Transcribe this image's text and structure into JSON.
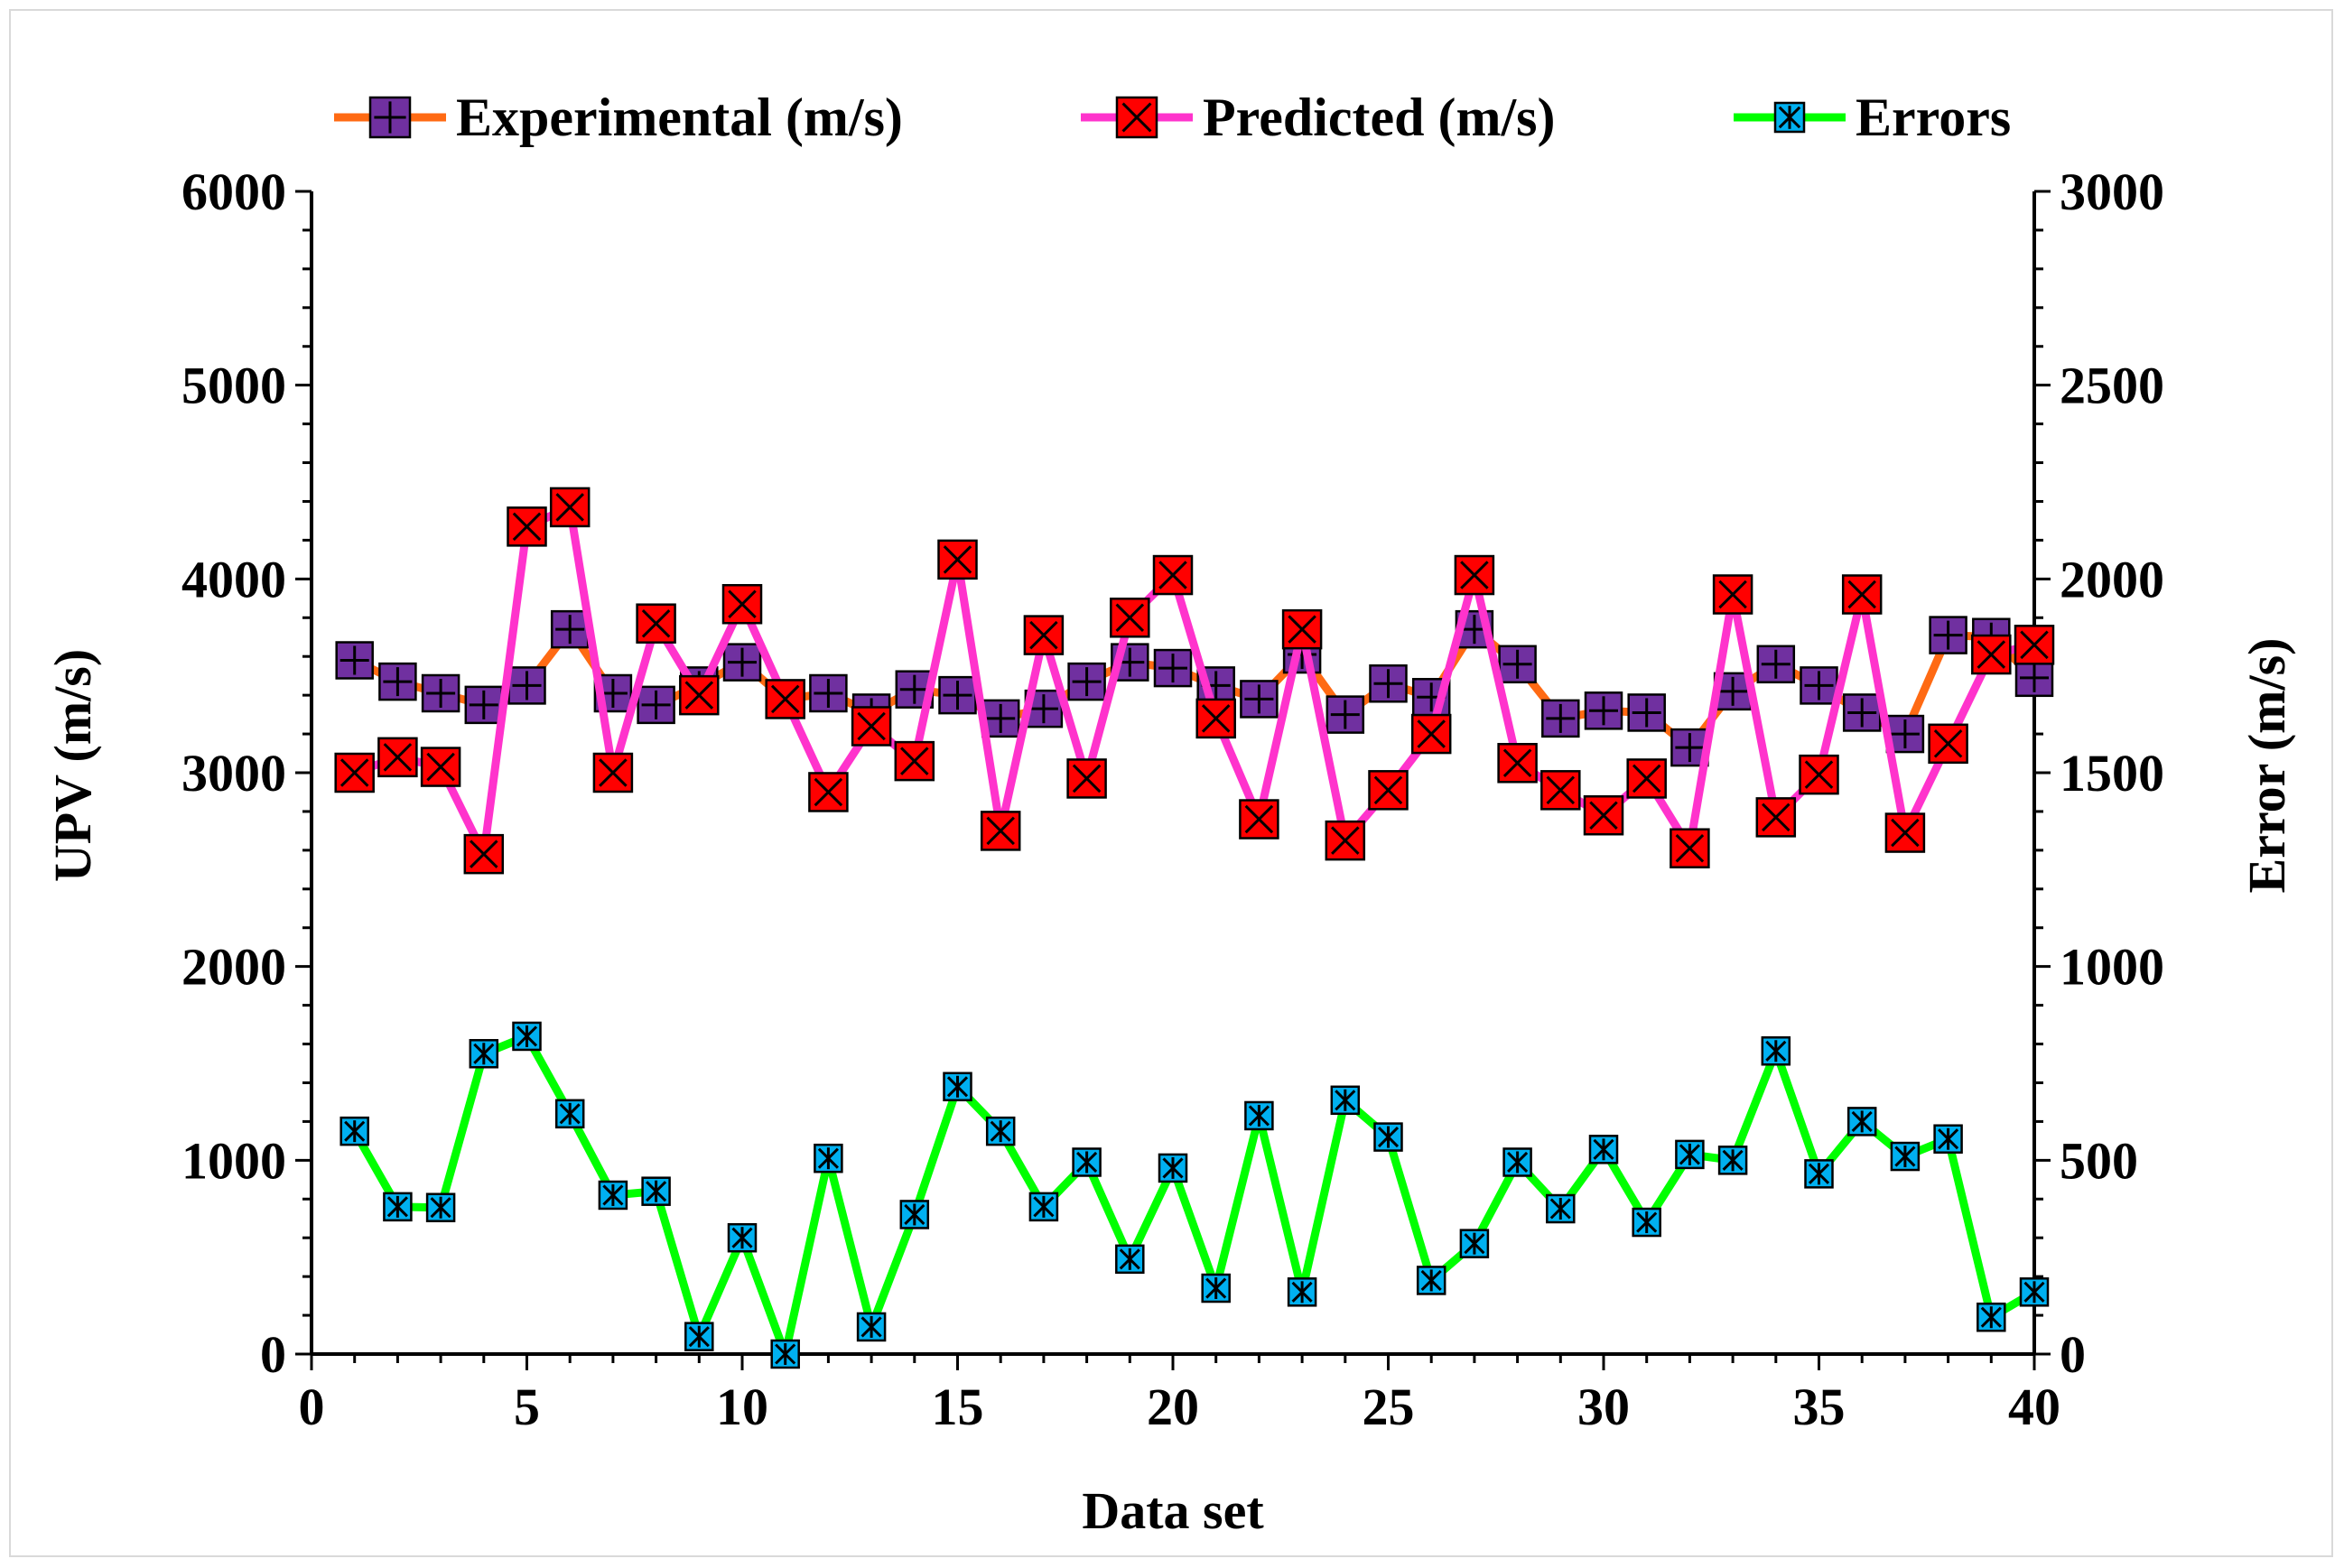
{
  "chart_data": {
    "type": "line",
    "title": "",
    "xlabel": "Data set",
    "ylabel": "UPV (m/s)",
    "y2label": "Error (m/s)",
    "xlim": [
      0,
      40
    ],
    "ylim": [
      0,
      6000
    ],
    "y2lim": [
      0,
      3000
    ],
    "xticks": [
      "0",
      "5",
      "10",
      "15",
      "20",
      "25",
      "30",
      "35",
      "40"
    ],
    "yticks": [
      "0",
      "1000",
      "2000",
      "3000",
      "4000",
      "5000",
      "6000"
    ],
    "y2ticks": [
      "0",
      "500",
      "1000",
      "1500",
      "2000",
      "2500",
      "3000"
    ],
    "x": [
      1,
      2,
      3,
      4,
      5,
      6,
      7,
      8,
      9,
      10,
      11,
      12,
      13,
      14,
      15,
      16,
      17,
      18,
      19,
      20,
      21,
      22,
      23,
      24,
      25,
      26,
      27,
      28,
      29,
      30,
      31,
      32,
      33,
      34,
      35,
      36,
      37,
      38,
      39,
      40
    ],
    "series": [
      {
        "name": "Experimental (m/s)",
        "axis": "left",
        "line_color": "#ff6a13",
        "marker": "plus-square",
        "marker_color": "#7030a0",
        "values": [
          3580,
          3470,
          3410,
          3350,
          3450,
          3740,
          3410,
          3350,
          3450,
          3570,
          3380,
          3410,
          3310,
          3430,
          3400,
          3280,
          3330,
          3470,
          3570,
          3540,
          3450,
          3380,
          3610,
          3300,
          3460,
          3390,
          3740,
          3560,
          3280,
          3320,
          3310,
          3130,
          3420,
          3560,
          3450,
          3310,
          3200,
          3710,
          3700,
          3490
        ]
      },
      {
        "name": "Predicted (m/s)",
        "axis": "left",
        "line_color": "#ff33cc",
        "marker": "x-square",
        "marker_color": "#ff0000",
        "values": [
          3000,
          3080,
          3030,
          2580,
          4270,
          4370,
          3000,
          3770,
          3400,
          3870,
          3380,
          2900,
          3240,
          3060,
          4100,
          2700,
          3710,
          2970,
          3800,
          4020,
          3280,
          2760,
          3740,
          2650,
          2910,
          3200,
          4020,
          3050,
          2910,
          2780,
          2970,
          2610,
          3920,
          2770,
          2990,
          3920,
          2690,
          3150,
          3610,
          3660
        ]
      },
      {
        "name": "Errors",
        "axis": "right",
        "line_color": "#00ff00",
        "marker": "asterisk-square",
        "marker_color": "#00b0f0",
        "values": [
          575,
          380,
          378,
          775,
          820,
          620,
          410,
          420,
          45,
          300,
          0,
          505,
          70,
          360,
          690,
          575,
          380,
          495,
          245,
          480,
          170,
          615,
          160,
          655,
          560,
          190,
          285,
          495,
          375,
          528,
          340,
          515,
          500,
          782,
          465,
          600,
          510,
          555,
          95,
          160
        ]
      }
    ]
  }
}
